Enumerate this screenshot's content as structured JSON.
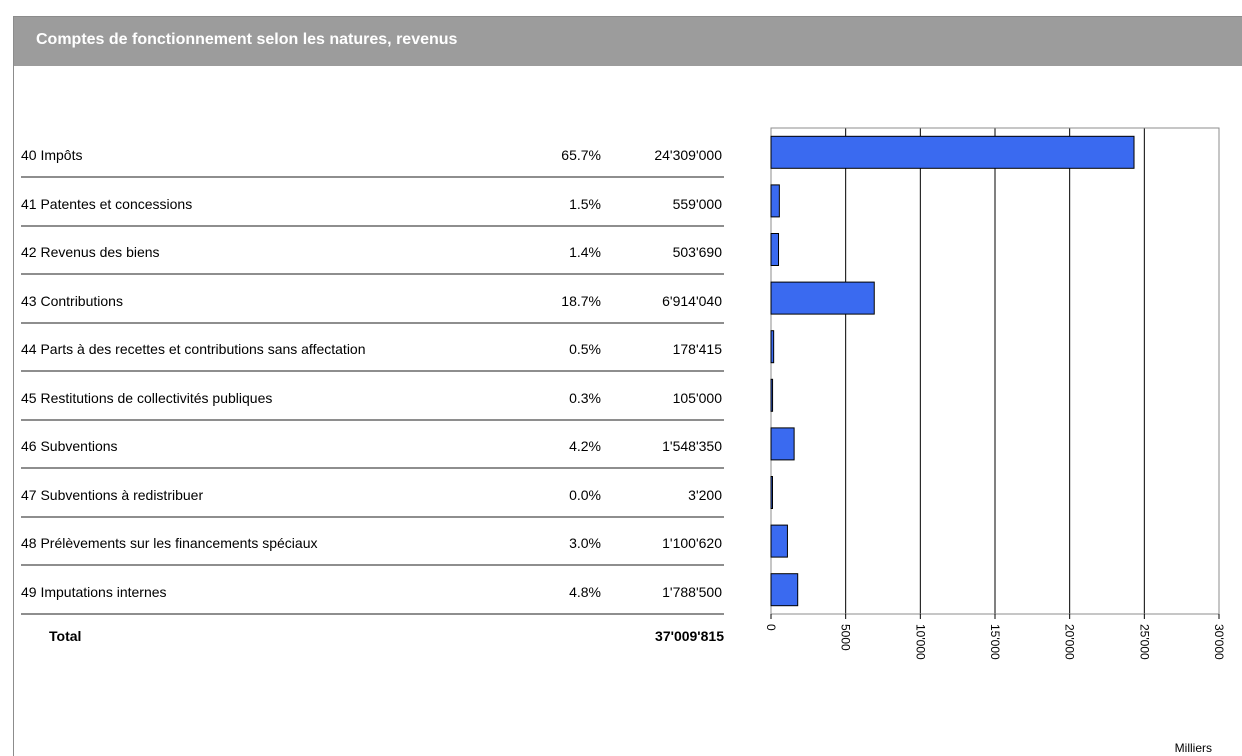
{
  "header": {
    "title": "Comptes de fonctionnement selon les natures, revenus"
  },
  "rows": [
    {
      "label": "40  Impôts",
      "percent": "65.7%",
      "amount": "24'309'000"
    },
    {
      "label": "41  Patentes et concessions",
      "percent": "1.5%",
      "amount": "559'000"
    },
    {
      "label": "42  Revenus des biens",
      "percent": "1.4%",
      "amount": "503'690"
    },
    {
      "label": "43  Contributions",
      "percent": "18.7%",
      "amount": "6'914'040"
    },
    {
      "label": "44  Parts à des recettes et contributions sans affectation",
      "percent": "0.5%",
      "amount": "178'415"
    },
    {
      "label": "45  Restitutions de collectivités publiques",
      "percent": "0.3%",
      "amount": "105'000"
    },
    {
      "label": "46  Subventions",
      "percent": "4.2%",
      "amount": "1'548'350"
    },
    {
      "label": "47  Subventions à redistribuer",
      "percent": "0.0%",
      "amount": "3'200"
    },
    {
      "label": "48  Prélèvements sur les financements spéciaux",
      "percent": "3.0%",
      "amount": "1'100'620"
    },
    {
      "label": "49  Imputations internes",
      "percent": "4.8%",
      "amount": "1'788'500"
    }
  ],
  "total": {
    "label": "Total",
    "amount": "37'009'815"
  },
  "chart_data": {
    "type": "bar",
    "orientation": "horizontal",
    "categories": [
      "40",
      "41",
      "42",
      "43",
      "44",
      "45",
      "46",
      "47",
      "48",
      "49"
    ],
    "values": [
      24309,
      559,
      503.69,
      6914.04,
      178.415,
      105,
      1548.35,
      3.2,
      1100.62,
      1788.5
    ],
    "xlim": [
      0,
      30000
    ],
    "ticks": [
      0,
      5000,
      10000,
      15000,
      20000,
      25000,
      30000
    ],
    "tick_labels": [
      "0",
      "5000",
      "10'000",
      "15'000",
      "20'000",
      "25'000",
      "30'000"
    ],
    "unit_label": "Milliers",
    "bar_color": "#3a6af0",
    "grid": true
  }
}
